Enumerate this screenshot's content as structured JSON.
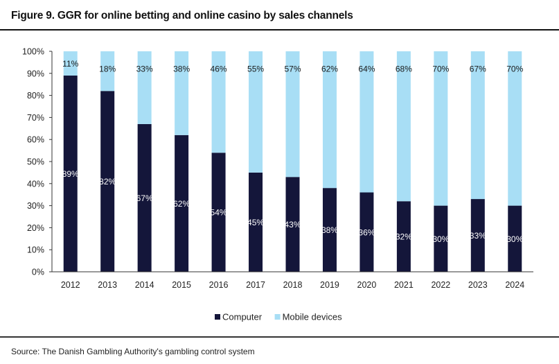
{
  "figure": {
    "title": "Figure 9. GGR for online betting and online casino by sales channels",
    "source": "Source: The Danish Gambling Authority's gambling control system"
  },
  "chart_data": {
    "type": "bar",
    "stacked": true,
    "categories": [
      "2012",
      "2013",
      "2014",
      "2015",
      "2016",
      "2017",
      "2018",
      "2019",
      "2020",
      "2021",
      "2022",
      "2023",
      "2024"
    ],
    "series": [
      {
        "name": "Computer",
        "color": "#14163a",
        "label_color": "#ffffff",
        "values": [
          89,
          82,
          67,
          62,
          54,
          45,
          43,
          38,
          36,
          32,
          30,
          33,
          30
        ]
      },
      {
        "name": "Mobile devices",
        "color": "#a8def5",
        "label_color": "#1a1a1a",
        "values": [
          11,
          18,
          33,
          38,
          46,
          55,
          57,
          62,
          64,
          68,
          70,
          67,
          70
        ]
      }
    ],
    "y_tick_labels": [
      "0%",
      "10%",
      "20%",
      "30%",
      "40%",
      "50%",
      "60%",
      "70%",
      "80%",
      "90%",
      "100%"
    ],
    "ylim": [
      0,
      100
    ],
    "grid": false,
    "legend_position": "bottom-center"
  }
}
